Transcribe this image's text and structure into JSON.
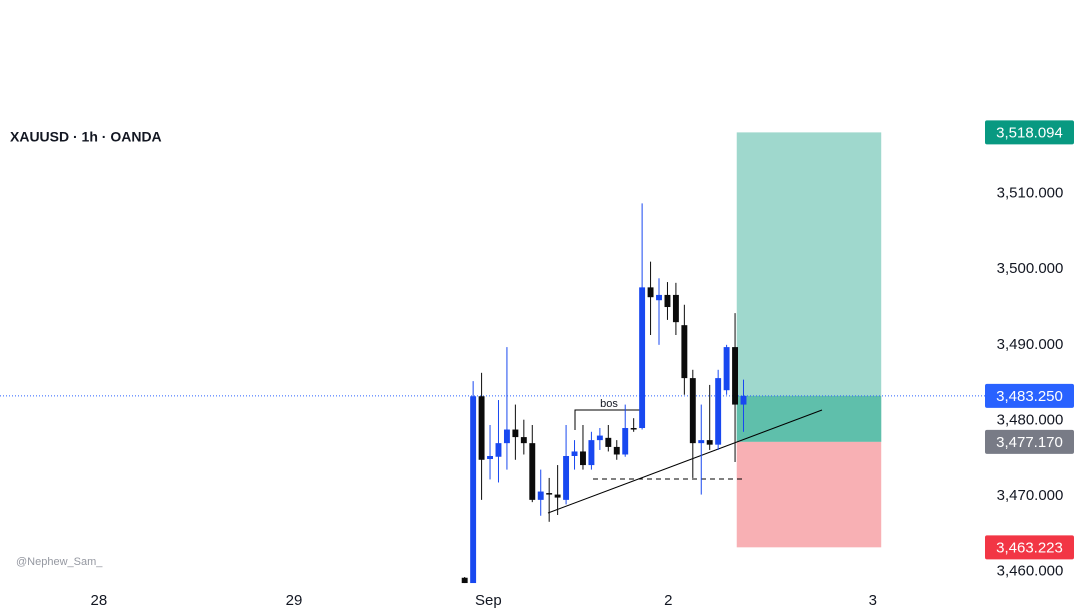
{
  "chart_data": {
    "type": "candlestick",
    "title": "XAUUSD · 1h · OANDA",
    "watermark": "@Nephew_Sam_",
    "annotations": [
      "bos"
    ],
    "up_color": "#1848f0",
    "down_color": "#0b0b0b",
    "x": [
      0,
      1,
      2,
      3,
      4,
      5,
      6,
      7,
      8,
      9,
      10,
      11,
      12,
      13,
      14,
      15,
      16,
      17,
      18,
      19,
      20,
      21,
      22,
      23,
      24,
      25,
      26,
      27,
      28,
      29,
      30,
      31,
      32,
      33
    ],
    "open": [
      3459.2,
      3458.5,
      3483.2,
      3474.9,
      3475.2,
      3477.0,
      3478.8,
      3477.8,
      3477.0,
      3469.5,
      3470.4,
      3470.2,
      3469.5,
      3475.3,
      3475.9,
      3474.1,
      3477.4,
      3477.7,
      3476.5,
      3475.5,
      3479.0,
      3479.0,
      3497.6,
      3495.9,
      3496.6,
      3496.6,
      3492.6,
      3485.6,
      3477.0,
      3477.4,
      3476.8,
      3484.0,
      3489.7,
      3482.1
    ],
    "high": [
      3459.3,
      3485.2,
      3486.3,
      3479.4,
      3482.7,
      3489.7,
      3482.1,
      3480.1,
      3479.4,
      3473.5,
      3472.4,
      3474.1,
      3479.4,
      3477.4,
      3479.4,
      3478.5,
      3479.0,
      3479.4,
      3477.4,
      3482.1,
      3480.3,
      3508.7,
      3501.0,
      3498.8,
      3498.3,
      3498.2,
      3495.3,
      3486.7,
      3482.1,
      3484.7,
      3486.7,
      3490.0,
      3494.2,
      3485.4
    ],
    "low": [
      3458.5,
      3458.5,
      3469.5,
      3472.2,
      3471.8,
      3473.5,
      3474.8,
      3475.5,
      3469.2,
      3467.4,
      3466.6,
      3467.5,
      3468.9,
      3473.5,
      3473.5,
      3473.5,
      3476.1,
      3475.9,
      3474.8,
      3475.2,
      3478.5,
      3478.8,
      3491.3,
      3490.0,
      3493.3,
      3491.3,
      3483.4,
      3472.4,
      3470.2,
      3476.1,
      3476.1,
      3483.4,
      3474.5,
      3478.5
    ],
    "close": [
      3458.5,
      3483.2,
      3474.8,
      3475.3,
      3477.0,
      3478.8,
      3477.8,
      3477.0,
      3469.5,
      3470.6,
      3470.2,
      3469.8,
      3475.3,
      3475.9,
      3474.1,
      3477.4,
      3478.0,
      3476.5,
      3475.5,
      3479.0,
      3478.9,
      3497.6,
      3496.3,
      3496.6,
      3495.0,
      3493.0,
      3485.6,
      3477.0,
      3477.4,
      3476.8,
      3485.6,
      3489.7,
      3482.1,
      3483.25
    ],
    "xlim": [
      -55,
      60.4
    ],
    "xticks": [
      {
        "value": -43.3,
        "label": "28"
      },
      {
        "value": -20.2,
        "label": "29"
      },
      {
        "value": 2.8,
        "label": "Sep"
      },
      {
        "value": 24.1,
        "label": "2"
      },
      {
        "value": 48.3,
        "label": "3"
      }
    ],
    "ylim": [
      3455.2,
      3535.6
    ],
    "yticks": [
      {
        "value": 3460,
        "label": "3,460.000"
      },
      {
        "value": 3470,
        "label": "3,470.000"
      },
      {
        "value": 3480,
        "label": "3,480.000"
      },
      {
        "value": 3490,
        "label": "3,490.000"
      },
      {
        "value": 3500,
        "label": "3,500.000"
      },
      {
        "value": 3510,
        "label": "3,510.000"
      }
    ],
    "position": {
      "x": [
        32.2,
        49.3
      ],
      "target": 3518.094,
      "entry": 3477.17,
      "stop": 3463.223,
      "last": 3483.25,
      "target_color": "#9fd8cd",
      "active_color": "#5fbfab",
      "stop_color": "#f8b0b4"
    },
    "price_labels": [
      {
        "value": 3518.094,
        "label": "3,518.094",
        "color": "#089981"
      },
      {
        "value": 3483.25,
        "label": "3,483.250",
        "color": "#2962ff"
      },
      {
        "value": 3477.17,
        "label": "3,477.170",
        "color": "#787b86"
      },
      {
        "value": 3463.223,
        "label": "3,463.223",
        "color": "#f23645"
      }
    ]
  }
}
